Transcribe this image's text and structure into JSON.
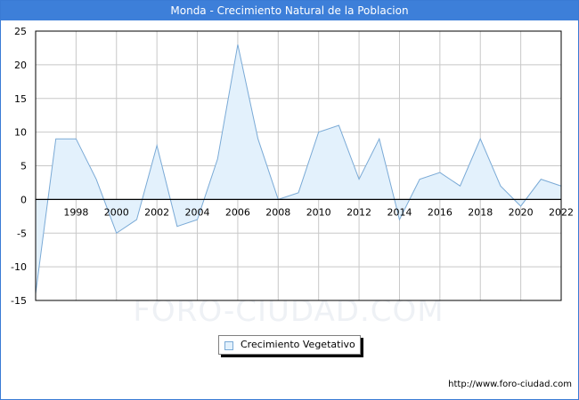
{
  "header": {
    "title": "Monda - Crecimiento Natural de la Poblacion"
  },
  "watermark": "FORO-CIUDAD.COM",
  "credit": "http://www.foro-ciudad.com",
  "colors": {
    "title_bar": "#3d7fd9",
    "area_fill": "#e3f1fc",
    "line": "#7aaad6",
    "grid": "#c8c8c8"
  },
  "chart_data": {
    "type": "area",
    "title": "Monda - Crecimiento Natural de la Poblacion",
    "xlabel": "",
    "ylabel": "",
    "x": [
      1996,
      1997,
      1998,
      1999,
      2000,
      2001,
      2002,
      2003,
      2004,
      2005,
      2006,
      2007,
      2008,
      2009,
      2010,
      2011,
      2012,
      2013,
      2014,
      2015,
      2016,
      2017,
      2018,
      2019,
      2020,
      2021,
      2022
    ],
    "series": [
      {
        "name": "Crecimiento Vegetativo",
        "values": [
          -14,
          9,
          9,
          3,
          -5,
          -3,
          8,
          -4,
          -3,
          6,
          23,
          9,
          0,
          1,
          10,
          11,
          3,
          9,
          -3,
          3,
          4,
          2,
          9,
          2,
          -1,
          3,
          2
        ]
      }
    ],
    "x_ticks": [
      "1998",
      "2000",
      "2002",
      "2004",
      "2006",
      "2008",
      "2010",
      "2012",
      "2014",
      "2016",
      "2018",
      "2020",
      "2022"
    ],
    "y_ticks": [
      "25",
      "20",
      "15",
      "10",
      "5",
      "0",
      "-5",
      "-10",
      "-15"
    ],
    "xlim": [
      1996,
      2022
    ],
    "ylim": [
      -15,
      25
    ],
    "grid": true,
    "legend_position": "bottom-center"
  }
}
